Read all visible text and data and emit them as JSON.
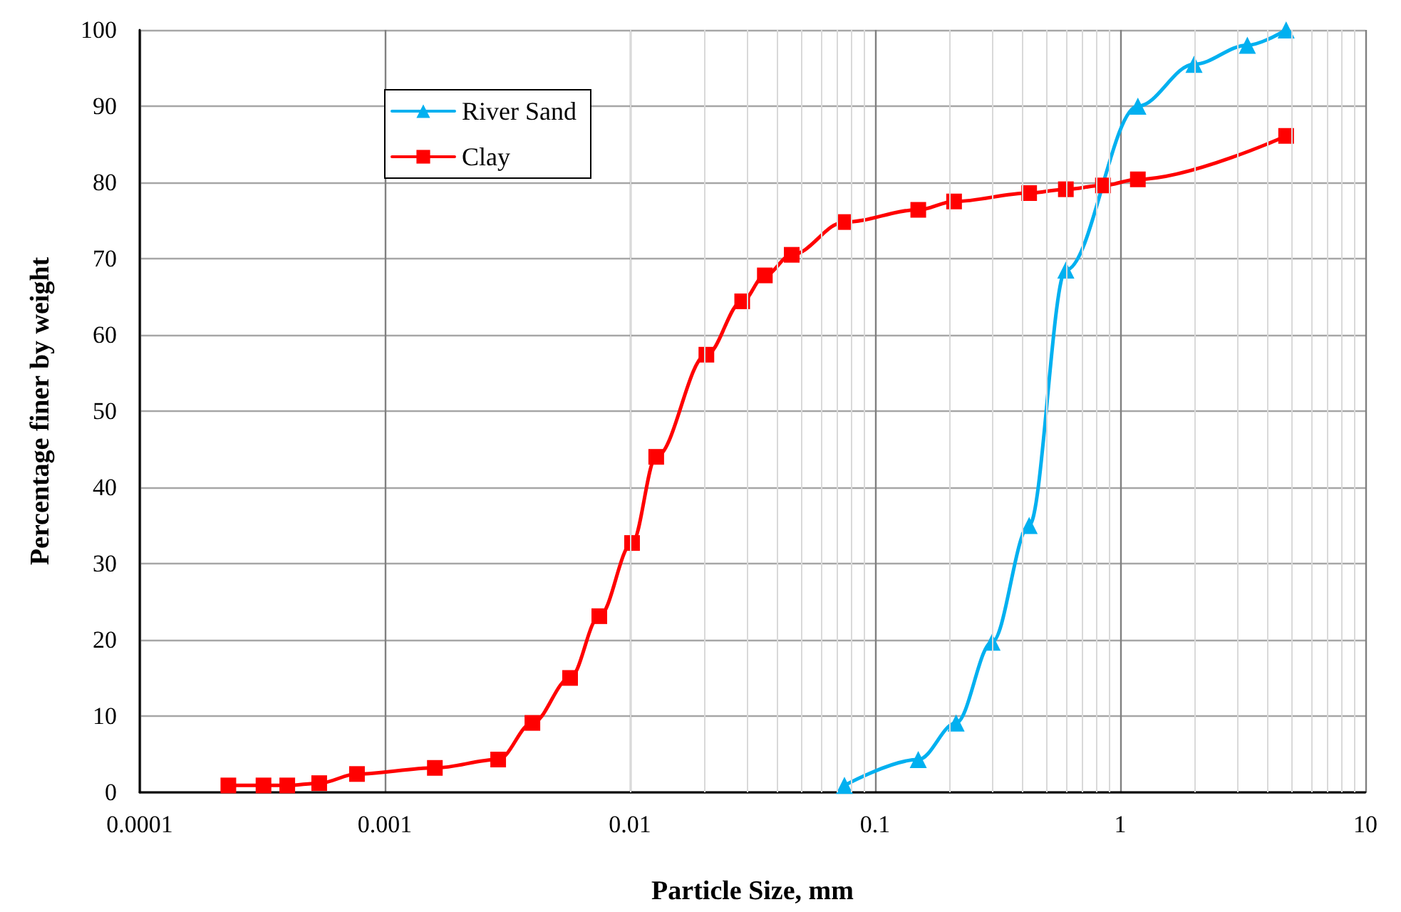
{
  "chart_data": {
    "type": "line",
    "xlabel": "Particle Size, mm",
    "ylabel": "Percentage finer by weight",
    "log": "x",
    "xlim": [
      0.0001,
      10
    ],
    "xticks": [
      0.0001,
      0.001,
      0.01,
      0.1,
      1,
      10
    ],
    "ylim": [
      0,
      100
    ],
    "yticks": [
      0,
      10,
      20,
      30,
      40,
      50,
      60,
      70,
      80,
      90,
      100
    ],
    "grid": true,
    "legend": "top left",
    "series": [
      {
        "name": "River Sand",
        "color": "#00b0f0",
        "marker": "triangle",
        "x": [
          0.075,
          0.15,
          0.214,
          0.3,
          0.425,
          0.6,
          1.18,
          2.0,
          3.3,
          4.75
        ],
        "values": [
          0.9,
          4.3,
          9.1,
          19.7,
          35,
          68.5,
          90,
          95.5,
          98,
          100
        ]
      },
      {
        "name": "Clay",
        "color": "#ff0000",
        "marker": "square",
        "x": [
          0.00023,
          0.00032,
          0.0004,
          0.00054,
          0.00077,
          0.0016,
          0.0029,
          0.004,
          0.0057,
          0.0075,
          0.0102,
          0.0128,
          0.0205,
          0.0287,
          0.0355,
          0.0457,
          0.075,
          0.15,
          0.21,
          0.425,
          0.6,
          0.85,
          1.18,
          4.75
        ],
        "values": [
          0.9,
          0.9,
          0.9,
          1.2,
          2.4,
          3.2,
          4.3,
          9.1,
          15,
          23.1,
          32.7,
          44,
          57.4,
          64.4,
          67.8,
          70.5,
          74.8,
          76.4,
          77.5,
          78.6,
          79.1,
          79.6,
          80.4,
          86.1
        ]
      }
    ]
  }
}
